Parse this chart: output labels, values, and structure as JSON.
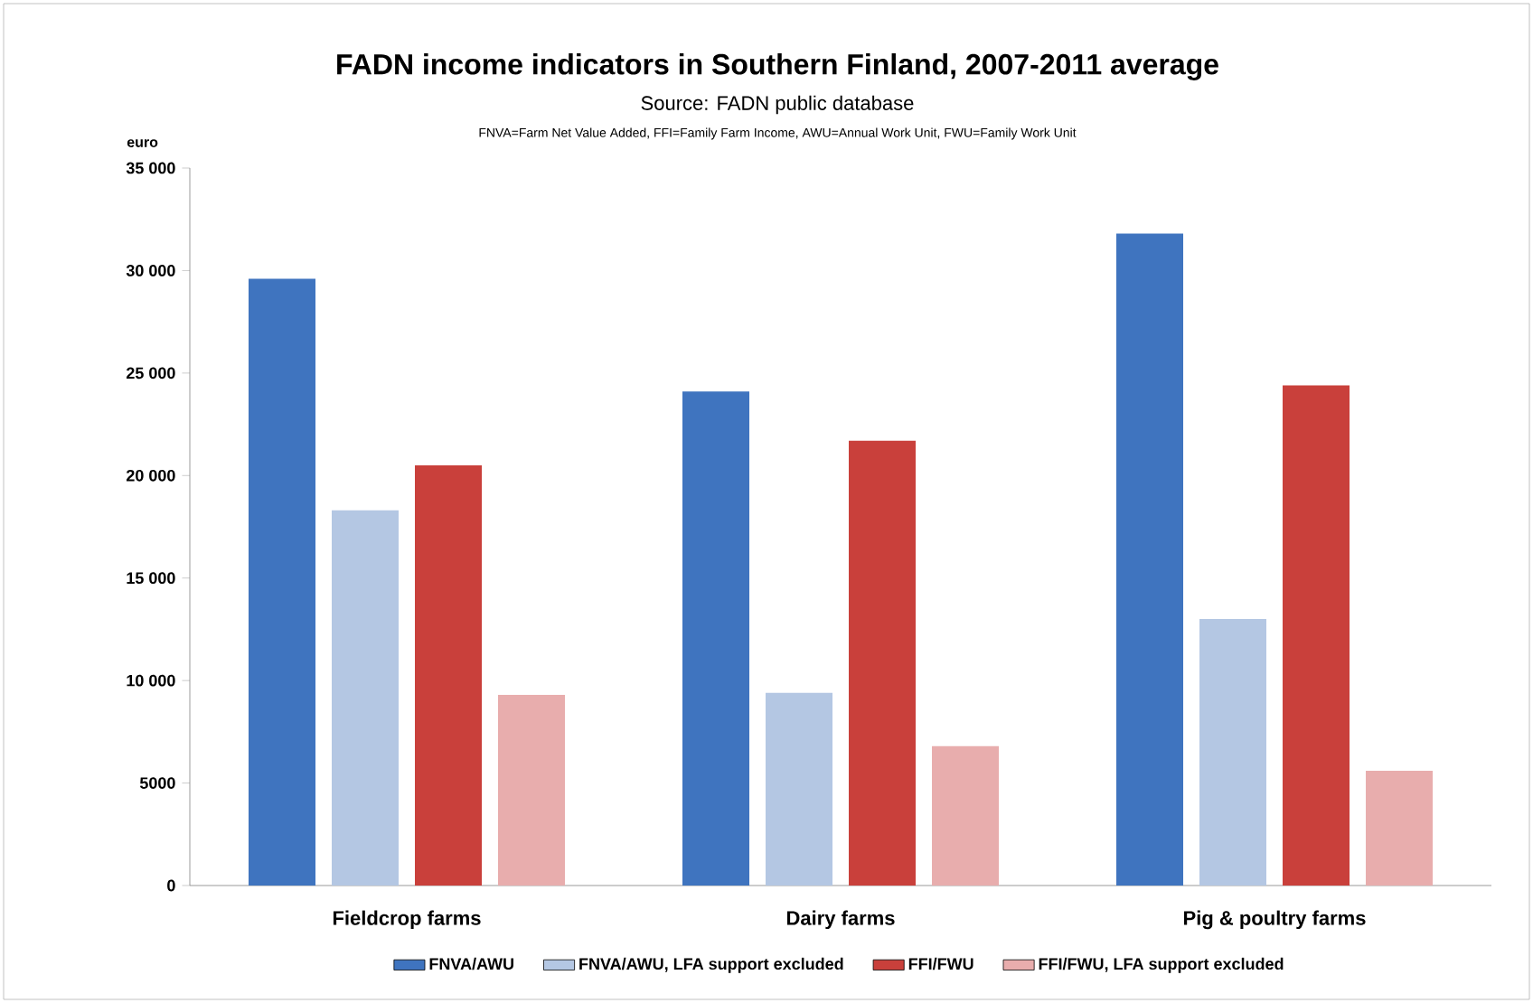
{
  "chart_data": {
    "type": "bar",
    "title": "FADN income indicators in Southern Finland, 2007-2011 average",
    "subtitle": "Source: FADN public database",
    "annotations": [
      "FNVA=Farm Net Value Added, FFI=Family Farm Income, AWU=Annual Work Unit, FWU=Family Work Unit"
    ],
    "ylabel": "euro",
    "categories": [
      "Fieldcrop farms",
      "Dairy farms",
      "Pig & poultry farms"
    ],
    "series": [
      {
        "name": "FNVA/AWU",
        "color": "#3f74bf",
        "values": [
          29600,
          24100,
          31800
        ]
      },
      {
        "name": "FNVA/AWU, LFA support excluded",
        "color": "#b4c7e3",
        "values": [
          18300,
          9400,
          13000
        ]
      },
      {
        "name": "FFI/FWU",
        "color": "#c9403b",
        "values": [
          20500,
          21700,
          24400
        ]
      },
      {
        "name": "FFI/FWU, LFA support excluded",
        "color": "#e8adad",
        "values": [
          9300,
          6800,
          5600
        ]
      }
    ],
    "ylim": [
      0,
      35000
    ],
    "yticks": [
      0,
      5000,
      {
        "value": 10000,
        "label": "10 000"
      },
      {
        "value": 15000,
        "label": "15 000"
      },
      {
        "value": 20000,
        "label": "20 000"
      },
      {
        "value": 25000,
        "label": "25 000"
      },
      {
        "value": 30000,
        "label": "30 000"
      },
      {
        "value": 35000,
        "label": "35 000"
      }
    ],
    "legend": "bottom"
  }
}
